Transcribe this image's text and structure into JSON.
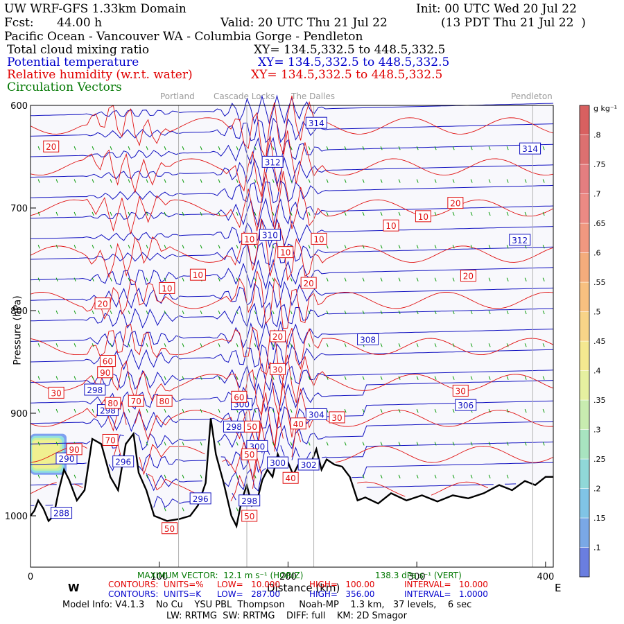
{
  "header": {
    "model_title": "UW WRF-GFS 1.33km Domain",
    "init": "Init: 00 UTC Wed 20 Jul 22",
    "fcst_label": "Fcst:",
    "fcst_value": "44.00 h",
    "valid": "Valid: 20 UTC Thu 21 Jul 22",
    "valid_local": "(13 PDT Thu 21 Jul 22  )",
    "cross_section_title": "Pacific Ocean - Vancouver WA - Columbia Gorge - Pendleton",
    "fields": [
      {
        "name": "Total cloud mixing ratio",
        "xy": "XY= 134.5,332.5 to 448.5,332.5",
        "color": "#000000"
      },
      {
        "name": "Potential temperature",
        "xy": "XY= 134.5,332.5 to 448.5,332.5",
        "color": "#0000cc"
      },
      {
        "name": "Relative humidity (w.r.t. water)",
        "xy": "XY= 134.5,332.5 to 448.5,332.5",
        "color": "#e00000"
      },
      {
        "name": "Circulation Vectors",
        "xy": "",
        "color": "#007700"
      }
    ]
  },
  "locations": [
    "Portland",
    "Cascade Locks",
    "The Dalles",
    "Pendleton"
  ],
  "chart_data": {
    "type": "cross-section",
    "xlabel": "Distance (km)",
    "ylabel": "Pressure (hPa)",
    "x_ticks": [
      0,
      100,
      200,
      300,
      400
    ],
    "y_ticks": [
      600,
      700,
      800,
      900,
      1000
    ],
    "xlim": [
      0,
      406
    ],
    "ylim": [
      1050,
      600
    ],
    "direction_left": "W",
    "direction_right": "E",
    "locations_km": [
      {
        "name": "Portland",
        "km": 115
      },
      {
        "name": "Cascade Locks",
        "km": 168
      },
      {
        "name": "The Dalles",
        "km": 220
      },
      {
        "name": "Pendleton",
        "km": 390
      }
    ],
    "theta_contours": {
      "units": "K",
      "low": 287.0,
      "high": 356.0,
      "interval": 1.0,
      "labels": [
        {
          "value": 314,
          "km": 222,
          "p": 617
        },
        {
          "value": 314,
          "km": 388,
          "p": 642
        },
        {
          "value": 312,
          "km": 188,
          "p": 655
        },
        {
          "value": 312,
          "km": 380,
          "p": 731
        },
        {
          "value": 310,
          "km": 186,
          "p": 726
        },
        {
          "value": 308,
          "km": 262,
          "p": 828
        },
        {
          "value": 306,
          "km": 338,
          "p": 892
        },
        {
          "value": 304,
          "km": 222,
          "p": 901
        },
        {
          "value": 302,
          "km": 216,
          "p": 950
        },
        {
          "value": 300,
          "km": 164,
          "p": 891
        },
        {
          "value": 300,
          "km": 176,
          "p": 932
        },
        {
          "value": 300,
          "km": 192,
          "p": 948
        },
        {
          "value": 298,
          "km": 50,
          "p": 877
        },
        {
          "value": 298,
          "km": 60,
          "p": 897
        },
        {
          "value": 298,
          "km": 158,
          "p": 913
        },
        {
          "value": 298,
          "km": 170,
          "p": 985
        },
        {
          "value": 296,
          "km": 72,
          "p": 947
        },
        {
          "value": 296,
          "km": 132,
          "p": 983
        },
        {
          "value": 290,
          "km": 28,
          "p": 944
        },
        {
          "value": 288,
          "km": 24,
          "p": 997
        }
      ]
    },
    "rh_contours": {
      "units": "%",
      "low": 10.0,
      "high": 100.0,
      "interval": 10.0,
      "labels": [
        {
          "value": 20,
          "km": 16,
          "p": 640
        },
        {
          "value": 20,
          "km": 330,
          "p": 695
        },
        {
          "value": 20,
          "km": 340,
          "p": 766
        },
        {
          "value": 20,
          "km": 216,
          "p": 773
        },
        {
          "value": 20,
          "km": 56,
          "p": 793
        },
        {
          "value": 20,
          "km": 192,
          "p": 825
        },
        {
          "value": 10,
          "km": 280,
          "p": 717
        },
        {
          "value": 10,
          "km": 305,
          "p": 708
        },
        {
          "value": 10,
          "km": 170,
          "p": 730
        },
        {
          "value": 10,
          "km": 224,
          "p": 730
        },
        {
          "value": 10,
          "km": 198,
          "p": 743
        },
        {
          "value": 10,
          "km": 130,
          "p": 765
        },
        {
          "value": 10,
          "km": 106,
          "p": 778
        },
        {
          "value": 30,
          "km": 192,
          "p": 857
        },
        {
          "value": 30,
          "km": 334,
          "p": 878
        },
        {
          "value": 30,
          "km": 238,
          "p": 904
        },
        {
          "value": 30,
          "km": 20,
          "p": 880
        },
        {
          "value": 40,
          "km": 208,
          "p": 910
        },
        {
          "value": 40,
          "km": 202,
          "p": 963
        },
        {
          "value": 50,
          "km": 172,
          "p": 913
        },
        {
          "value": 50,
          "km": 170,
          "p": 940
        },
        {
          "value": 50,
          "km": 170,
          "p": 1000
        },
        {
          "value": 60,
          "km": 162,
          "p": 884
        },
        {
          "value": 60,
          "km": 60,
          "p": 849
        },
        {
          "value": 70,
          "km": 82,
          "p": 888
        },
        {
          "value": 70,
          "km": 62,
          "p": 926
        },
        {
          "value": 80,
          "km": 104,
          "p": 888
        },
        {
          "value": 80,
          "km": 64,
          "p": 890
        },
        {
          "value": 90,
          "km": 58,
          "p": 860
        },
        {
          "value": 90,
          "km": 34,
          "p": 935
        },
        {
          "value": 50,
          "km": 108,
          "p": 1012
        }
      ]
    },
    "cloud_colorbar": {
      "units": "g kg⁻¹",
      "ticks": [
        ".1",
        ".15",
        ".2",
        ".25",
        ".3",
        ".35",
        ".4",
        ".45",
        ".5",
        ".55",
        ".6",
        ".65",
        ".7",
        ".75",
        ".8"
      ]
    },
    "cloud_region": {
      "km_range": [
        0,
        28
      ],
      "p_range": [
        920,
        960
      ],
      "max_g_kg": 0.3
    },
    "terrain_p": [
      [
        0,
        1000
      ],
      [
        3,
        995
      ],
      [
        6,
        985
      ],
      [
        10,
        993
      ],
      [
        14,
        1005
      ],
      [
        18,
        1000
      ],
      [
        22,
        975
      ],
      [
        26,
        955
      ],
      [
        30,
        965
      ],
      [
        36,
        985
      ],
      [
        42,
        975
      ],
      [
        48,
        925
      ],
      [
        55,
        930
      ],
      [
        62,
        962
      ],
      [
        68,
        975
      ],
      [
        74,
        930
      ],
      [
        80,
        920
      ],
      [
        84,
        958
      ],
      [
        90,
        975
      ],
      [
        96,
        1000
      ],
      [
        106,
        1005
      ],
      [
        116,
        1003
      ],
      [
        124,
        1000
      ],
      [
        130,
        990
      ],
      [
        136,
        968
      ],
      [
        140,
        905
      ],
      [
        144,
        940
      ],
      [
        150,
        968
      ],
      [
        156,
        1000
      ],
      [
        160,
        1010
      ],
      [
        164,
        985
      ],
      [
        168,
        970
      ],
      [
        172,
        990
      ],
      [
        176,
        985
      ],
      [
        180,
        965
      ],
      [
        184,
        955
      ],
      [
        188,
        962
      ],
      [
        192,
        940
      ],
      [
        196,
        952
      ],
      [
        200,
        948
      ],
      [
        204,
        960
      ],
      [
        208,
        950
      ],
      [
        212,
        948
      ],
      [
        218,
        948
      ],
      [
        222,
        935
      ],
      [
        226,
        955
      ],
      [
        230,
        945
      ],
      [
        236,
        950
      ],
      [
        242,
        952
      ],
      [
        248,
        962
      ],
      [
        254,
        985
      ],
      [
        260,
        982
      ],
      [
        270,
        988
      ],
      [
        280,
        978
      ],
      [
        292,
        985
      ],
      [
        304,
        980
      ],
      [
        316,
        986
      ],
      [
        328,
        980
      ],
      [
        340,
        983
      ],
      [
        352,
        978
      ],
      [
        364,
        970
      ],
      [
        374,
        975
      ],
      [
        384,
        966
      ],
      [
        392,
        970
      ],
      [
        400,
        962
      ],
      [
        406,
        962
      ]
    ],
    "footer": {
      "max_vector": "MAXIMUM VECTOR:  12.1 m s⁻¹ (HORIZ)",
      "max_vector_vert": "138.3 dPa s⁻¹ (VERT)",
      "rh_contour_line": [
        "CONTOURS:  UNITS=%",
        "LOW=   10.000",
        "HIGH=   100.00",
        "INTERVAL=   10.000"
      ],
      "theta_contour_line": [
        "CONTOURS:  UNITS=K",
        "LOW=   287.00",
        "HIGH=   356.00",
        "INTERVAL=   1.0000"
      ],
      "model_info": "Model Info: V4.1.3    No Cu    YSU PBL  Thompson     Noah-MP    1.3 km,   37 levels,    6 sec",
      "physics": "LW: RRTMG  SW: RRTMG    DIFF: full    KM: 2D Smagor"
    }
  }
}
